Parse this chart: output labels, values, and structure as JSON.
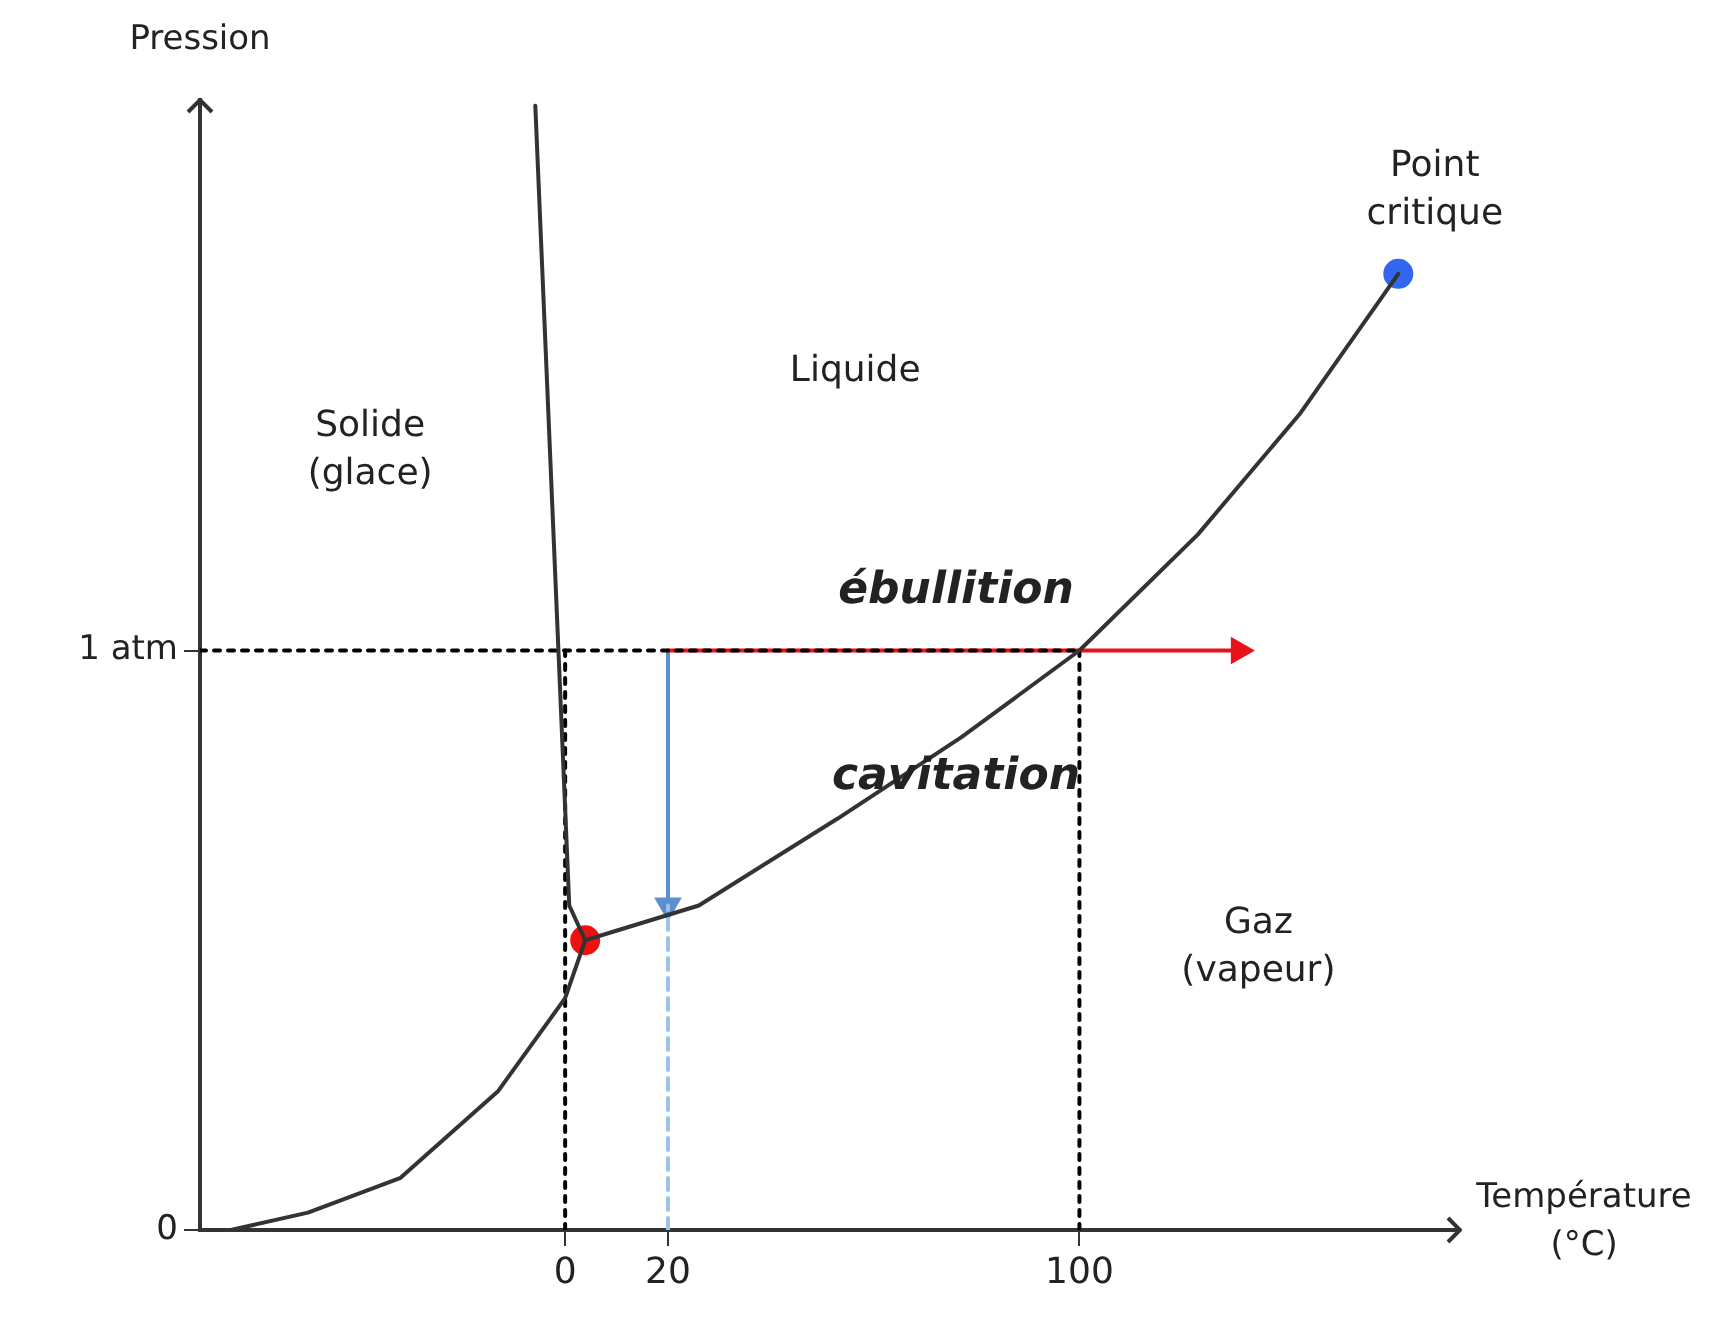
{
  "chart_data": {
    "type": "line",
    "xlabel": "Température\n(°C)",
    "ylabel": "Pression",
    "xlim": [
      -71,
      174
    ],
    "ylim": [
      0,
      1.95
    ],
    "xticks": [
      0,
      20,
      100
    ],
    "yticks": [
      0,
      {
        "value": 1,
        "label": "1 atm"
      }
    ],
    "grid": false,
    "legend": false,
    "series": [
      {
        "color": "#333333",
        "x": [
          -65,
          -50,
          -32,
          -13,
          0,
          3.9,
          26,
          53,
          77,
          100,
          123,
          143,
          162
        ],
        "values": [
          0,
          0.03,
          0.09,
          0.24,
          0.4,
          0.5,
          0.56,
          0.71,
          0.85,
          1,
          1.2,
          1.41,
          1.65
        ],
        "marker": "none"
      },
      {
        "color": "#333333",
        "x": [
          -5.8,
          0.8,
          3.9
        ],
        "values": [
          1.94,
          0.56,
          0.5
        ],
        "marker": "none"
      },
      {
        "color": "#000000",
        "x": [
          -71,
          100
        ],
        "values": [
          1,
          1
        ],
        "line_style": "dotted",
        "marker": "none"
      },
      {
        "color": "#000000",
        "x": [
          0,
          0
        ],
        "values": [
          0,
          1
        ],
        "line_style": "dotted",
        "marker": "none"
      },
      {
        "color": "#000000",
        "x": [
          100,
          100
        ],
        "values": [
          0,
          1
        ],
        "line_style": "dotted",
        "marker": "none"
      },
      {
        "color": "#9ec3ea",
        "x": [
          20,
          20
        ],
        "values": [
          0,
          0.56
        ],
        "line_style": "dashed",
        "marker": "none"
      },
      {
        "color": "#e8121a",
        "x": [
          20,
          131
        ],
        "values": [
          1,
          1
        ],
        "marker": "triangle"
      },
      {
        "color": "#5b8fd0",
        "x": [
          20,
          20
        ],
        "values": [
          1,
          0.56
        ],
        "marker": "triangle"
      },
      {
        "type": "scatter",
        "color": "#f01010",
        "x": [
          3.9
        ],
        "values": [
          0.5
        ],
        "marker": "circle"
      },
      {
        "type": "scatter",
        "color": "#3366ee",
        "x": [
          162
        ],
        "values": [
          1.65
        ],
        "marker": "circle"
      }
    ],
    "annotations": [
      "Solide\n(glace)",
      "Liquide",
      "Gaz\n(vapeur)",
      "Point\ncritique",
      "ébullition",
      "cavitation"
    ]
  }
}
